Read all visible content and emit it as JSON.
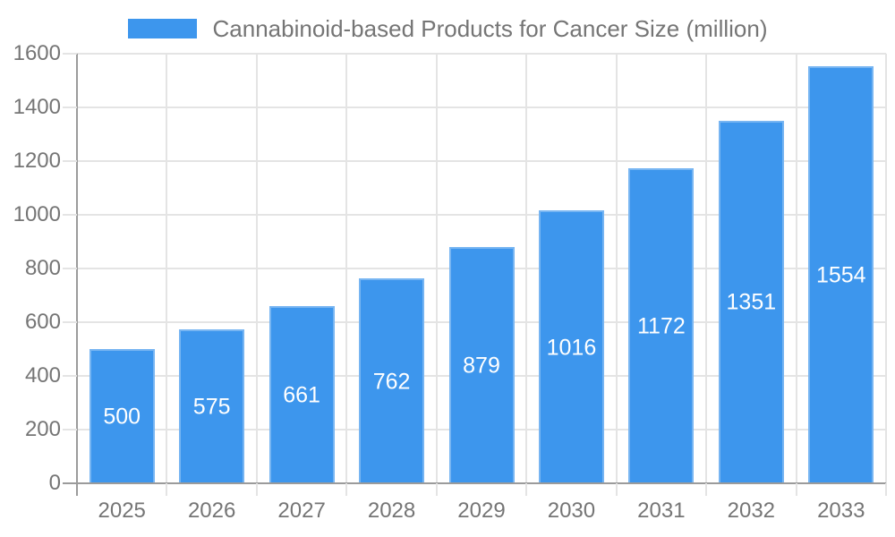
{
  "legend": {
    "label": "Cannabinoid-based Products for Cancer Size (million)"
  },
  "chart_data": {
    "type": "bar",
    "title": "Cannabinoid-based Products for Cancer Size (million)",
    "series_name": "Cannabinoid-based Products for Cancer Size (million)",
    "categories": [
      "2025",
      "2026",
      "2027",
      "2028",
      "2029",
      "2030",
      "2031",
      "2032",
      "2033"
    ],
    "values": [
      500,
      575,
      661,
      762,
      879,
      1016,
      1172,
      1351,
      1554
    ],
    "bar_labels": [
      "500",
      "575",
      "661",
      "762",
      "879",
      "1016",
      "1172",
      "1351",
      "1554"
    ],
    "xlabel": "",
    "ylabel": "",
    "ylim": [
      0,
      1600
    ],
    "y_ticks": [
      0,
      200,
      400,
      600,
      800,
      1000,
      1200,
      1400,
      1600
    ],
    "grid": true,
    "legend_position": "top",
    "colors": {
      "bar": "#3D96ED",
      "bar_label": "#FFFFFF",
      "grid": "#E4E4E4",
      "axis_line": "#9B9B9B",
      "axis_text": "#757575",
      "legend_text": "#757575"
    }
  }
}
